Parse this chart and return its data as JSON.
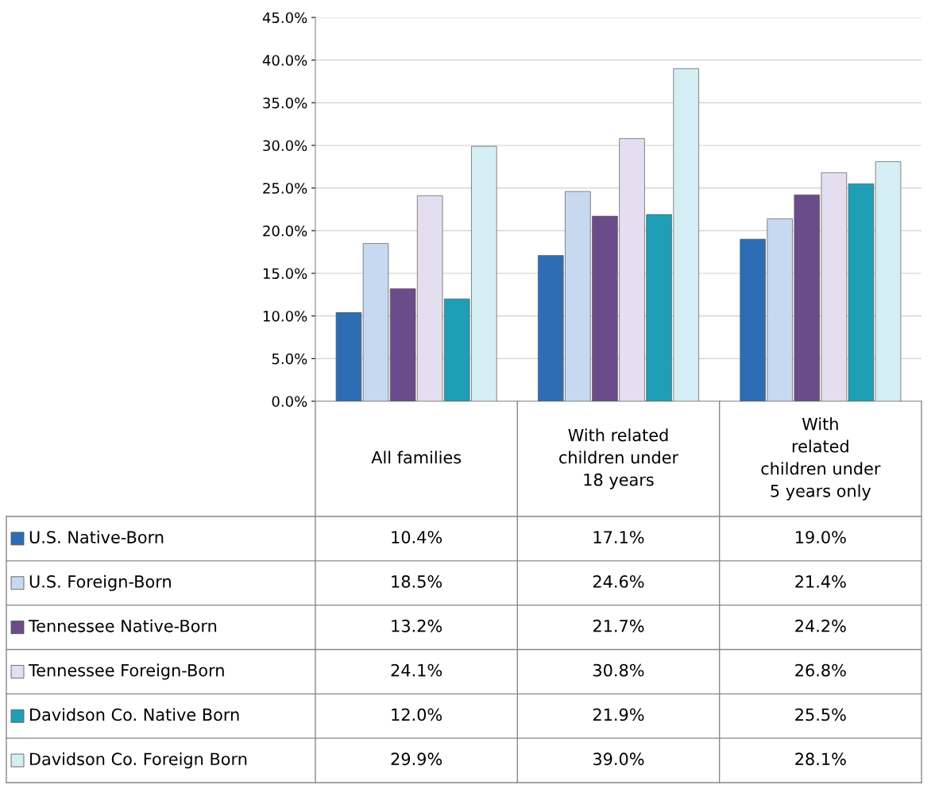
{
  "chart_data": {
    "type": "bar",
    "categories": [
      "All families",
      "With related\nchildren under\n18 years",
      "With\nrelated\nchildren under\n5 years only"
    ],
    "series": [
      {
        "name": "U.S. Native-Born",
        "color": "#2e6db4",
        "values": [
          10.4,
          17.1,
          19.0
        ],
        "value_labels": [
          "10.4%",
          "17.1%",
          "19.0%"
        ]
      },
      {
        "name": "U.S. Foreign-Born",
        "color": "#c6d9f1",
        "values": [
          18.5,
          24.6,
          21.4
        ],
        "value_labels": [
          "18.5%",
          "24.6%",
          "21.4%"
        ]
      },
      {
        "name": "Tennessee Native-Born",
        "color": "#6b4c8a",
        "values": [
          13.2,
          21.7,
          24.2
        ],
        "value_labels": [
          "13.2%",
          "21.7%",
          "24.2%"
        ]
      },
      {
        "name": "Tennessee Foreign-Born",
        "color": "#e4dff0",
        "values": [
          24.1,
          30.8,
          26.8
        ],
        "value_labels": [
          "24.1%",
          "30.8%",
          "26.8%"
        ]
      },
      {
        "name": "Davidson Co. Native Born",
        "color": "#1f9fb5",
        "values": [
          12.0,
          21.9,
          25.5
        ],
        "value_labels": [
          "12.0%",
          "21.9%",
          "25.5%"
        ]
      },
      {
        "name": "Davidson Co. Foreign Born",
        "color": "#d4eef4",
        "values": [
          29.9,
          39.0,
          28.1
        ],
        "value_labels": [
          "29.9%",
          "39.0%",
          "28.1%"
        ]
      }
    ],
    "ylim": [
      0,
      45
    ],
    "yticks": [
      {
        "value": 0,
        "label": "0.0%"
      },
      {
        "value": 5,
        "label": "5.0%"
      },
      {
        "value": 10,
        "label": "10.0%"
      },
      {
        "value": 15,
        "label": "15.0%"
      },
      {
        "value": 20,
        "label": "20.0%"
      },
      {
        "value": 25,
        "label": "25.0%"
      },
      {
        "value": 30,
        "label": "30.0%"
      },
      {
        "value": 35,
        "label": "35.0%"
      },
      {
        "value": 40,
        "label": "40.0%"
      },
      {
        "value": 45,
        "label": "45.0%"
      }
    ],
    "grid": "y",
    "legend": "bottom"
  }
}
